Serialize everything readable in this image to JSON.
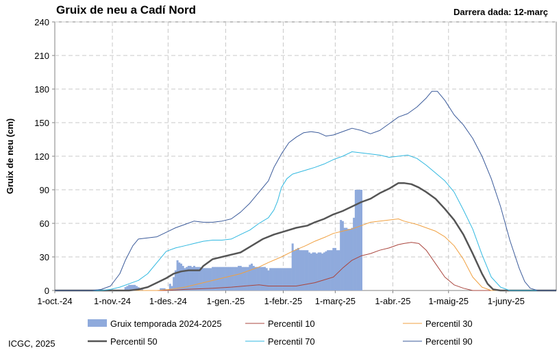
{
  "header": {
    "title": "Gruix de neu a Cadí Nord",
    "last_data": "Darrera dada: 12-març"
  },
  "footer": {
    "credit": "ICGC, 2025"
  },
  "chart_data": {
    "type": "bar+line",
    "title": "Gruix de neu a Cadí Nord",
    "xlabel": "",
    "ylabel": "Gruix de neu (cm)",
    "ylim": [
      0,
      240
    ],
    "yticks": [
      0,
      30,
      60,
      90,
      120,
      150,
      180,
      210,
      240
    ],
    "xlim_days": [
      0,
      270
    ],
    "xticks": [
      {
        "day": 0,
        "label": "1-oct.-24"
      },
      {
        "day": 31,
        "label": "1-nov.-24"
      },
      {
        "day": 61,
        "label": "1-des.-24"
      },
      {
        "day": 92,
        "label": "1-gen.-25"
      },
      {
        "day": 123,
        "label": "1-febr.-25"
      },
      {
        "day": 151,
        "label": "1-març-25"
      },
      {
        "day": 182,
        "label": "1-abr.-25"
      },
      {
        "day": 212,
        "label": "1-maig-25"
      },
      {
        "day": 243,
        "label": "1-juny-25"
      }
    ],
    "grid": true,
    "legend_position": "bottom",
    "bars": {
      "name": "Gruix temporada 2024-2025",
      "color": "#8faadc",
      "values": [
        [
          38,
          3
        ],
        [
          39,
          4
        ],
        [
          40,
          5
        ],
        [
          41,
          5
        ],
        [
          42,
          5
        ],
        [
          43,
          5
        ],
        [
          44,
          4
        ],
        [
          45,
          3
        ],
        [
          46,
          2
        ],
        [
          47,
          1
        ],
        [
          57,
          2
        ],
        [
          58,
          2
        ],
        [
          59,
          2
        ],
        [
          60,
          1
        ],
        [
          62,
          6
        ],
        [
          63,
          4
        ],
        [
          64,
          12
        ],
        [
          65,
          18
        ],
        [
          66,
          27
        ],
        [
          67,
          25
        ],
        [
          68,
          24
        ],
        [
          69,
          22
        ],
        [
          70,
          20
        ],
        [
          71,
          21
        ],
        [
          72,
          22
        ],
        [
          73,
          22
        ],
        [
          74,
          21
        ],
        [
          75,
          22
        ],
        [
          76,
          21
        ],
        [
          77,
          21
        ],
        [
          78,
          21
        ],
        [
          79,
          20
        ],
        [
          80,
          20
        ],
        [
          81,
          20
        ],
        [
          82,
          20
        ],
        [
          83,
          20
        ],
        [
          84,
          20
        ],
        [
          85,
          21
        ],
        [
          86,
          21
        ],
        [
          87,
          21
        ],
        [
          88,
          21
        ],
        [
          89,
          21
        ],
        [
          90,
          21
        ],
        [
          91,
          21
        ],
        [
          92,
          21
        ],
        [
          93,
          21
        ],
        [
          94,
          21
        ],
        [
          95,
          21
        ],
        [
          96,
          21
        ],
        [
          97,
          21
        ],
        [
          98,
          21
        ],
        [
          99,
          22
        ],
        [
          100,
          22
        ],
        [
          101,
          21
        ],
        [
          102,
          21
        ],
        [
          103,
          21
        ],
        [
          104,
          21
        ],
        [
          105,
          23
        ],
        [
          106,
          24
        ],
        [
          107,
          22
        ],
        [
          108,
          21
        ],
        [
          109,
          21
        ],
        [
          110,
          21
        ],
        [
          111,
          21
        ],
        [
          112,
          21
        ],
        [
          113,
          21
        ],
        [
          114,
          20
        ],
        [
          115,
          18
        ],
        [
          116,
          20
        ],
        [
          117,
          20
        ],
        [
          118,
          20
        ],
        [
          119,
          20
        ],
        [
          120,
          20
        ],
        [
          121,
          20
        ],
        [
          122,
          20
        ],
        [
          123,
          20
        ],
        [
          124,
          20
        ],
        [
          125,
          20
        ],
        [
          126,
          20
        ],
        [
          127,
          20
        ],
        [
          128,
          42
        ],
        [
          129,
          36
        ],
        [
          130,
          37
        ],
        [
          131,
          38
        ],
        [
          132,
          36
        ],
        [
          133,
          36
        ],
        [
          134,
          36
        ],
        [
          135,
          36
        ],
        [
          136,
          36
        ],
        [
          137,
          34
        ],
        [
          138,
          33
        ],
        [
          139,
          34
        ],
        [
          140,
          34
        ],
        [
          141,
          33
        ],
        [
          142,
          34
        ],
        [
          143,
          34
        ],
        [
          144,
          33
        ],
        [
          145,
          34
        ],
        [
          146,
          35
        ],
        [
          147,
          36
        ],
        [
          148,
          36
        ],
        [
          149,
          36
        ],
        [
          150,
          38
        ],
        [
          151,
          38
        ],
        [
          152,
          36
        ],
        [
          153,
          36
        ],
        [
          154,
          63
        ],
        [
          155,
          62
        ],
        [
          156,
          56
        ],
        [
          157,
          56
        ],
        [
          158,
          55
        ],
        [
          159,
          55
        ],
        [
          160,
          56
        ],
        [
          161,
          65
        ],
        [
          162,
          90
        ],
        [
          163,
          90
        ],
        [
          164,
          90
        ],
        [
          165,
          90
        ]
      ]
    },
    "series": [
      {
        "name": "Percentil 10",
        "color": "#a9443c",
        "width": 1,
        "points": [
          [
            0,
            0
          ],
          [
            60,
            0
          ],
          [
            70,
            1
          ],
          [
            85,
            2
          ],
          [
            95,
            3
          ],
          [
            102,
            4
          ],
          [
            110,
            5
          ],
          [
            115,
            4
          ],
          [
            130,
            4
          ],
          [
            140,
            7
          ],
          [
            150,
            12
          ],
          [
            155,
            20
          ],
          [
            160,
            27
          ],
          [
            165,
            31
          ],
          [
            170,
            33
          ],
          [
            175,
            36
          ],
          [
            180,
            38
          ],
          [
            185,
            41
          ],
          [
            188,
            42
          ],
          [
            192,
            43
          ],
          [
            196,
            42
          ],
          [
            200,
            36
          ],
          [
            205,
            24
          ],
          [
            210,
            12
          ],
          [
            215,
            5
          ],
          [
            220,
            2
          ],
          [
            225,
            0
          ],
          [
            270,
            0
          ]
        ]
      },
      {
        "name": "Percentil 30",
        "color": "#f0a040",
        "width": 1,
        "points": [
          [
            0,
            0
          ],
          [
            55,
            0
          ],
          [
            62,
            1
          ],
          [
            70,
            3
          ],
          [
            80,
            7
          ],
          [
            90,
            11
          ],
          [
            100,
            15
          ],
          [
            110,
            21
          ],
          [
            115,
            25
          ],
          [
            122,
            30
          ],
          [
            128,
            35
          ],
          [
            135,
            40
          ],
          [
            140,
            44
          ],
          [
            146,
            48
          ],
          [
            150,
            51
          ],
          [
            155,
            53
          ],
          [
            160,
            55
          ],
          [
            165,
            58
          ],
          [
            170,
            61
          ],
          [
            175,
            62
          ],
          [
            180,
            63
          ],
          [
            185,
            64
          ],
          [
            188,
            62
          ],
          [
            195,
            59
          ],
          [
            200,
            56
          ],
          [
            205,
            53
          ],
          [
            210,
            48
          ],
          [
            215,
            40
          ],
          [
            220,
            28
          ],
          [
            225,
            12
          ],
          [
            230,
            3
          ],
          [
            235,
            0
          ],
          [
            270,
            0
          ]
        ]
      },
      {
        "name": "Percentil 50",
        "color": "#555555",
        "width": 2.5,
        "points": [
          [
            0,
            0
          ],
          [
            40,
            0
          ],
          [
            45,
            1
          ],
          [
            50,
            3
          ],
          [
            55,
            7
          ],
          [
            60,
            11
          ],
          [
            64,
            15
          ],
          [
            68,
            17
          ],
          [
            72,
            18
          ],
          [
            75,
            18
          ],
          [
            78,
            18
          ],
          [
            80,
            22
          ],
          [
            85,
            28
          ],
          [
            90,
            30
          ],
          [
            95,
            32
          ],
          [
            100,
            34
          ],
          [
            106,
            40
          ],
          [
            112,
            46
          ],
          [
            118,
            50
          ],
          [
            124,
            53
          ],
          [
            130,
            56
          ],
          [
            136,
            58
          ],
          [
            140,
            61
          ],
          [
            145,
            64
          ],
          [
            150,
            68
          ],
          [
            155,
            71
          ],
          [
            160,
            75
          ],
          [
            165,
            79
          ],
          [
            170,
            82
          ],
          [
            175,
            87
          ],
          [
            180,
            91
          ],
          [
            183,
            94
          ],
          [
            185,
            96
          ],
          [
            188,
            96
          ],
          [
            192,
            95
          ],
          [
            196,
            92
          ],
          [
            200,
            88
          ],
          [
            205,
            82
          ],
          [
            210,
            73
          ],
          [
            215,
            63
          ],
          [
            220,
            50
          ],
          [
            225,
            33
          ],
          [
            230,
            15
          ],
          [
            233,
            6
          ],
          [
            236,
            1
          ],
          [
            240,
            0
          ],
          [
            270,
            0
          ]
        ]
      },
      {
        "name": "Percentil 70",
        "color": "#30b8e0",
        "width": 1,
        "points": [
          [
            0,
            0
          ],
          [
            25,
            0
          ],
          [
            30,
            1
          ],
          [
            35,
            3
          ],
          [
            40,
            6
          ],
          [
            45,
            9
          ],
          [
            50,
            15
          ],
          [
            55,
            25
          ],
          [
            60,
            35
          ],
          [
            65,
            38
          ],
          [
            70,
            40
          ],
          [
            75,
            42
          ],
          [
            80,
            44
          ],
          [
            85,
            45
          ],
          [
            90,
            45
          ],
          [
            95,
            46
          ],
          [
            100,
            50
          ],
          [
            105,
            54
          ],
          [
            110,
            60
          ],
          [
            115,
            65
          ],
          [
            118,
            72
          ],
          [
            120,
            80
          ],
          [
            122,
            92
          ],
          [
            125,
            100
          ],
          [
            128,
            104
          ],
          [
            132,
            106
          ],
          [
            136,
            108
          ],
          [
            140,
            110
          ],
          [
            145,
            113
          ],
          [
            150,
            117
          ],
          [
            155,
            120
          ],
          [
            160,
            124
          ],
          [
            165,
            123
          ],
          [
            170,
            122
          ],
          [
            175,
            121
          ],
          [
            180,
            119
          ],
          [
            185,
            120
          ],
          [
            190,
            121
          ],
          [
            195,
            118
          ],
          [
            200,
            112
          ],
          [
            205,
            105
          ],
          [
            210,
            98
          ],
          [
            215,
            88
          ],
          [
            220,
            72
          ],
          [
            225,
            55
          ],
          [
            230,
            32
          ],
          [
            235,
            12
          ],
          [
            240,
            3
          ],
          [
            245,
            0
          ],
          [
            270,
            0
          ]
        ]
      },
      {
        "name": "Percentil 90",
        "color": "#3a5a9a",
        "width": 1,
        "points": [
          [
            0,
            0
          ],
          [
            20,
            0
          ],
          [
            25,
            1
          ],
          [
            30,
            4
          ],
          [
            35,
            15
          ],
          [
            38,
            27
          ],
          [
            42,
            40
          ],
          [
            45,
            46
          ],
          [
            50,
            47
          ],
          [
            55,
            48
          ],
          [
            60,
            52
          ],
          [
            65,
            56
          ],
          [
            70,
            59
          ],
          [
            75,
            62
          ],
          [
            80,
            61
          ],
          [
            85,
            61
          ],
          [
            90,
            62
          ],
          [
            95,
            64
          ],
          [
            100,
            70
          ],
          [
            105,
            78
          ],
          [
            110,
            88
          ],
          [
            115,
            98
          ],
          [
            118,
            110
          ],
          [
            122,
            122
          ],
          [
            126,
            132
          ],
          [
            130,
            137
          ],
          [
            134,
            141
          ],
          [
            138,
            142
          ],
          [
            142,
            141
          ],
          [
            146,
            138
          ],
          [
            150,
            139
          ],
          [
            155,
            142
          ],
          [
            160,
            145
          ],
          [
            165,
            143
          ],
          [
            170,
            140
          ],
          [
            175,
            143
          ],
          [
            180,
            149
          ],
          [
            185,
            155
          ],
          [
            190,
            158
          ],
          [
            195,
            164
          ],
          [
            200,
            172
          ],
          [
            203,
            178
          ],
          [
            206,
            178
          ],
          [
            210,
            170
          ],
          [
            215,
            157
          ],
          [
            220,
            148
          ],
          [
            225,
            136
          ],
          [
            230,
            120
          ],
          [
            235,
            100
          ],
          [
            240,
            75
          ],
          [
            245,
            45
          ],
          [
            250,
            20
          ],
          [
            253,
            8
          ],
          [
            256,
            2
          ],
          [
            260,
            0
          ],
          [
            270,
            0
          ]
        ]
      }
    ]
  }
}
